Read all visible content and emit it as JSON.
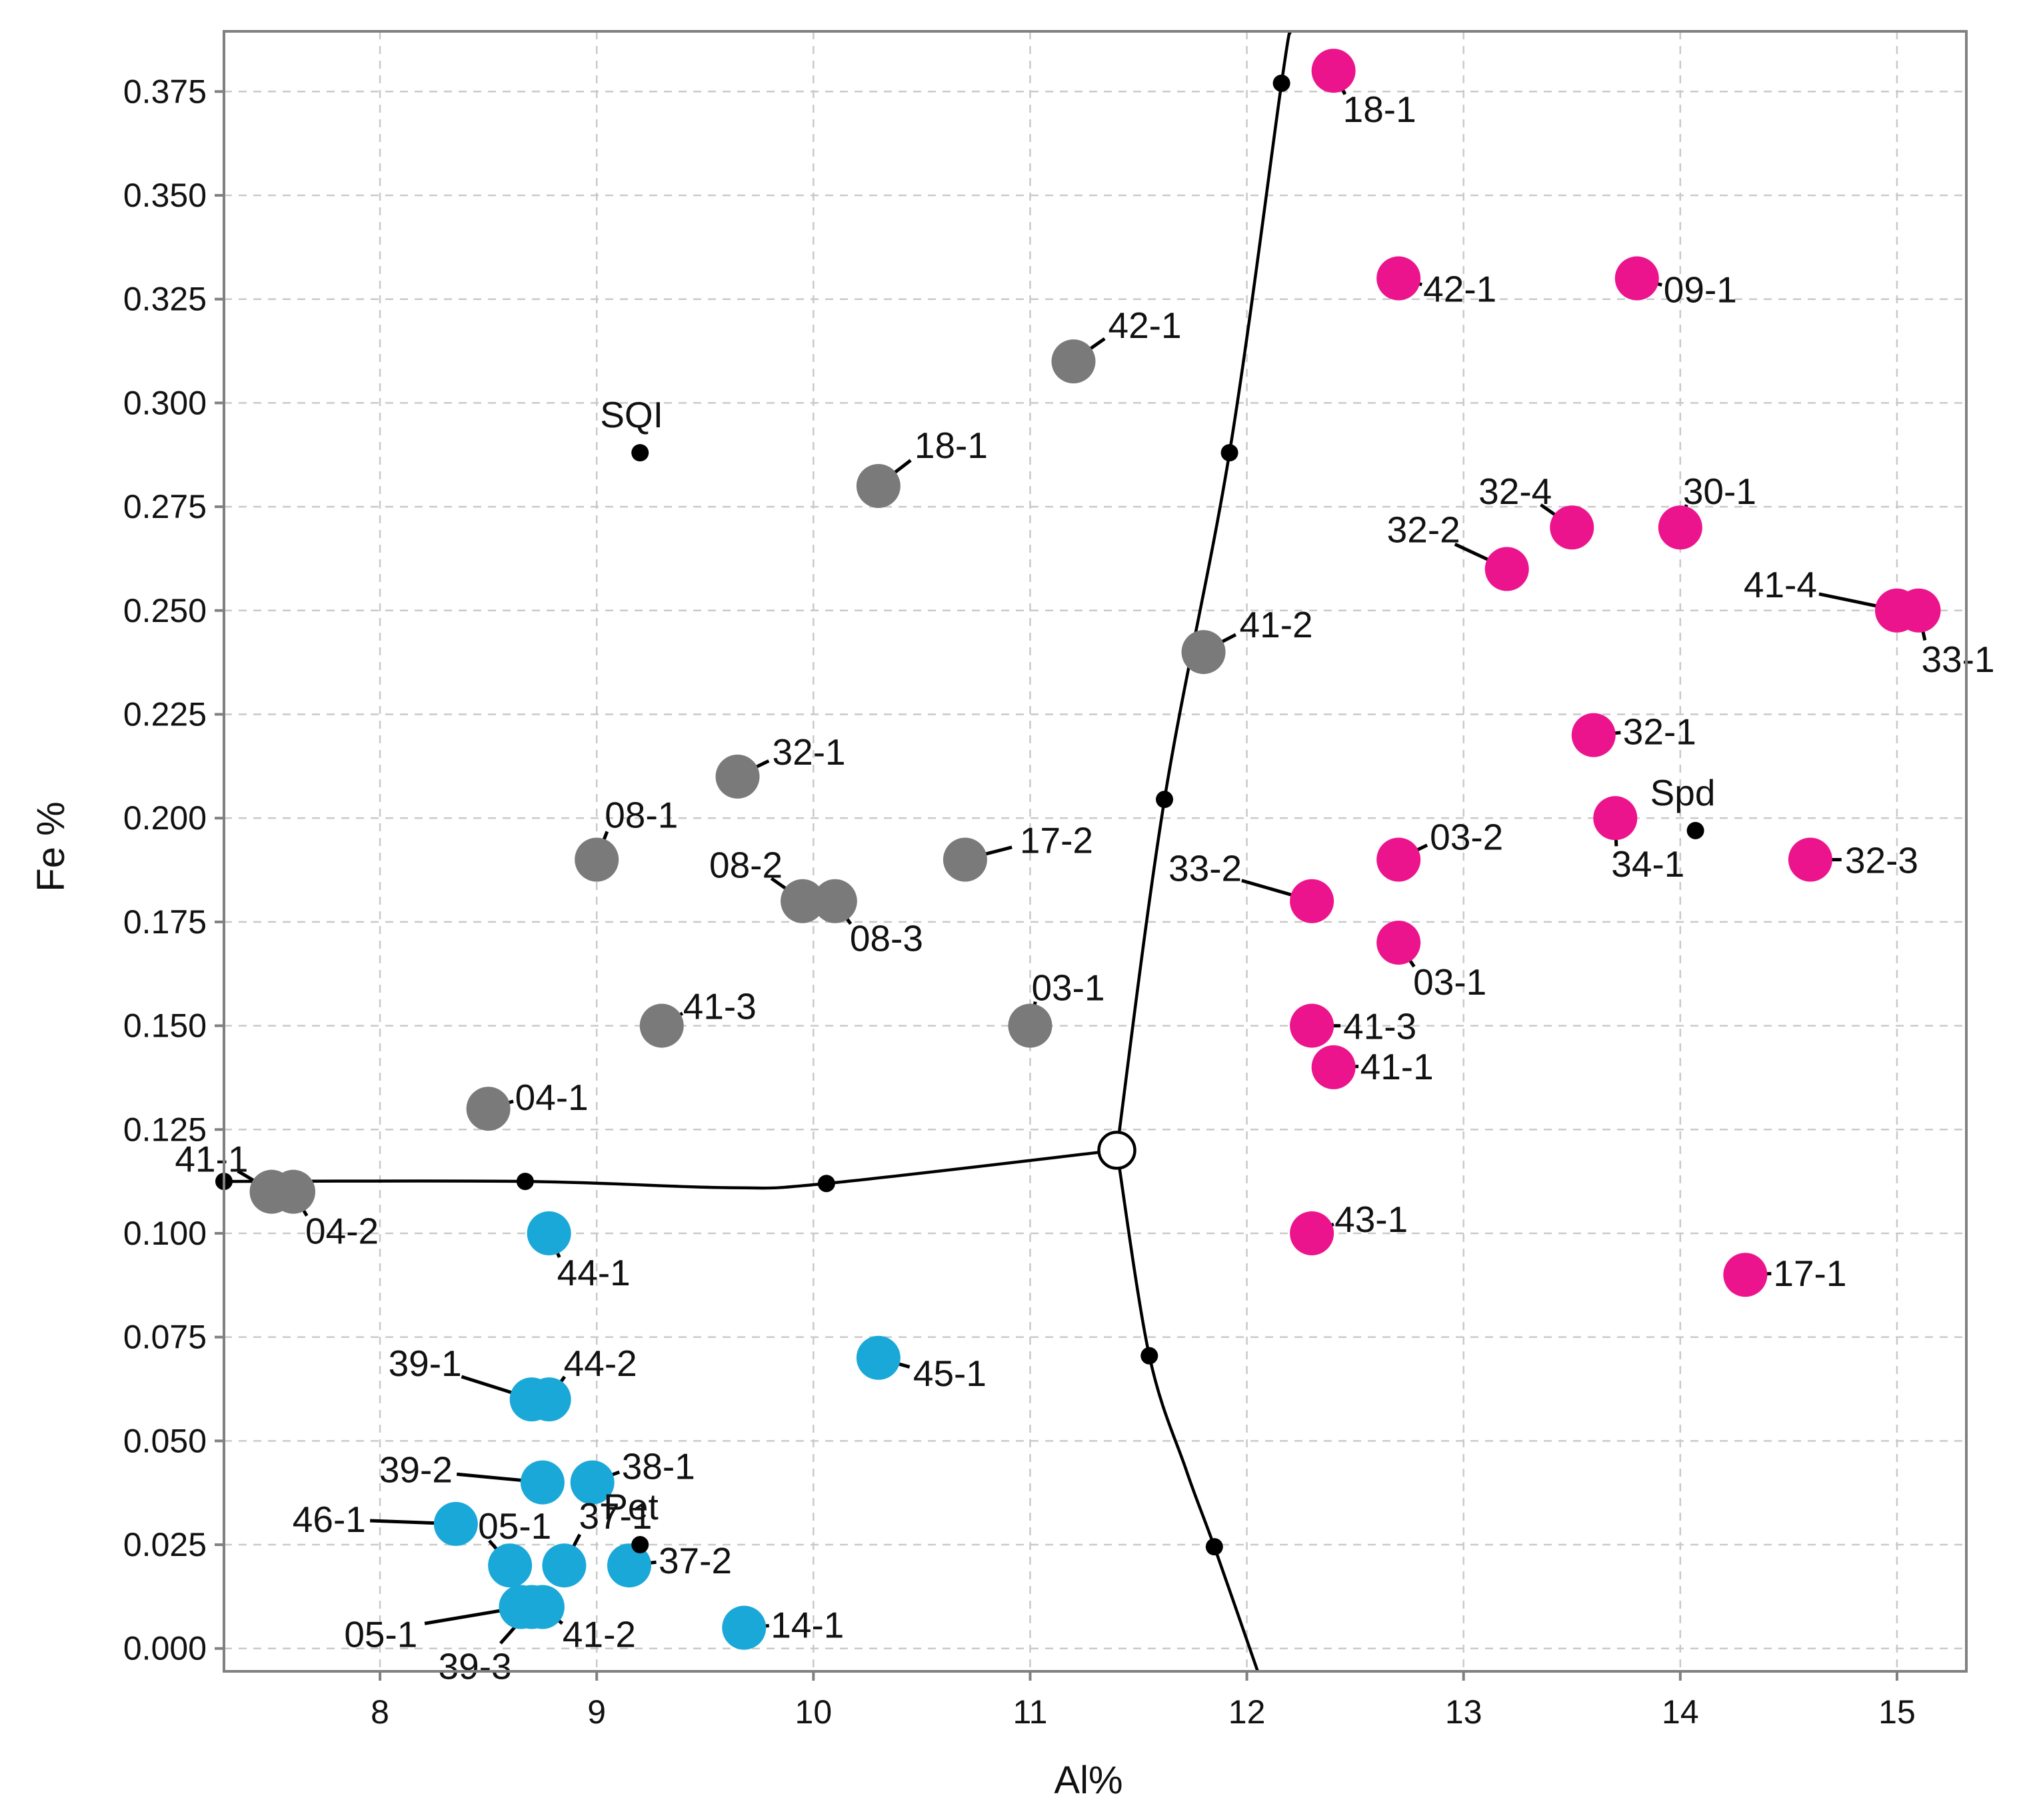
{
  "chart_data": {
    "type": "scatter",
    "title": "",
    "xlabel": "Al%",
    "ylabel": "Fe %",
    "xlim": [
      7.28,
      15.32
    ],
    "ylim": [
      -0.0055,
      0.3895
    ],
    "xticks": [
      8,
      9,
      10,
      11,
      12,
      13,
      14,
      15
    ],
    "yticks": [
      0.0,
      0.025,
      0.05,
      0.075,
      0.1,
      0.125,
      0.15,
      0.175,
      0.2,
      0.225,
      0.25,
      0.275,
      0.3,
      0.325,
      0.35,
      0.375
    ],
    "grid": true,
    "colors": {
      "grey": "#7a7a7a",
      "magenta": "#ec148c",
      "cyan": "#1aa8d8"
    },
    "series": [
      {
        "name": "grey",
        "color": "#7a7a7a",
        "points": [
          {
            "label": "42-1",
            "x": 11.2,
            "y": 0.31
          },
          {
            "label": "18-1",
            "x": 10.3,
            "y": 0.28
          },
          {
            "label": "41-2",
            "x": 11.8,
            "y": 0.24
          },
          {
            "label": "32-1",
            "x": 9.65,
            "y": 0.21
          },
          {
            "label": "08-1",
            "x": 9.0,
            "y": 0.19
          },
          {
            "label": "17-2",
            "x": 10.7,
            "y": 0.19
          },
          {
            "label": "08-2",
            "x": 9.95,
            "y": 0.18
          },
          {
            "label": "08-3",
            "x": 10.1,
            "y": 0.18
          },
          {
            "label": "41-3",
            "x": 9.3,
            "y": 0.15
          },
          {
            "label": "03-1",
            "x": 11.0,
            "y": 0.15
          },
          {
            "label": "04-1",
            "x": 8.5,
            "y": 0.13
          },
          {
            "label": "41-1",
            "x": 7.5,
            "y": 0.11
          },
          {
            "label": "04-2",
            "x": 7.6,
            "y": 0.11
          }
        ]
      },
      {
        "name": "magenta",
        "color": "#ec148c",
        "points": [
          {
            "label": "18-1",
            "x": 12.4,
            "y": 0.38
          },
          {
            "label": "42-1",
            "x": 12.7,
            "y": 0.33
          },
          {
            "label": "09-1",
            "x": 13.8,
            "y": 0.33
          },
          {
            "label": "32-4",
            "x": 13.5,
            "y": 0.27
          },
          {
            "label": "30-1",
            "x": 14.0,
            "y": 0.27
          },
          {
            "label": "32-2",
            "x": 13.2,
            "y": 0.26
          },
          {
            "label": "41-4",
            "x": 15.0,
            "y": 0.25
          },
          {
            "label": "33-1",
            "x": 15.1,
            "y": 0.25
          },
          {
            "label": "32-1",
            "x": 13.6,
            "y": 0.22
          },
          {
            "label": "34-1",
            "x": 13.7,
            "y": 0.2
          },
          {
            "label": "03-2",
            "x": 12.7,
            "y": 0.19
          },
          {
            "label": "32-3",
            "x": 14.6,
            "y": 0.19
          },
          {
            "label": "33-2",
            "x": 12.3,
            "y": 0.18
          },
          {
            "label": "03-1",
            "x": 12.7,
            "y": 0.17
          },
          {
            "label": "41-3",
            "x": 12.3,
            "y": 0.15
          },
          {
            "label": "41-1",
            "x": 12.4,
            "y": 0.14
          },
          {
            "label": "43-1",
            "x": 12.3,
            "y": 0.1
          },
          {
            "label": "17-1",
            "x": 14.3,
            "y": 0.09
          }
        ]
      },
      {
        "name": "cyan",
        "color": "#1aa8d8",
        "points": [
          {
            "label": "44-1",
            "x": 8.78,
            "y": 0.1
          },
          {
            "label": "45-1",
            "x": 10.3,
            "y": 0.07
          },
          {
            "label": "39-1",
            "x": 8.7,
            "y": 0.06
          },
          {
            "label": "44-2",
            "x": 8.78,
            "y": 0.06
          },
          {
            "label": "39-2",
            "x": 8.75,
            "y": 0.04
          },
          {
            "label": "38-1",
            "x": 8.98,
            "y": 0.04
          },
          {
            "label": "46-1",
            "x": 8.35,
            "y": 0.03
          },
          {
            "label": "05-1",
            "x": 8.6,
            "y": 0.02
          },
          {
            "label": "37-1",
            "x": 8.85,
            "y": 0.02
          },
          {
            "label": "37-2",
            "x": 9.15,
            "y": 0.02
          },
          {
            "label": "05-1",
            "x": 8.65,
            "y": 0.01
          },
          {
            "label": "41-2",
            "x": 8.75,
            "y": 0.01
          },
          {
            "label": "39-3",
            "x": 8.7,
            "y": 0.01
          },
          {
            "label": "14-1",
            "x": 9.68,
            "y": 0.005
          }
        ]
      }
    ],
    "reference_points": [
      {
        "label": "SQI",
        "x": 9.2,
        "y": 0.288
      },
      {
        "label": "Spd",
        "x": 14.07,
        "y": 0.197
      },
      {
        "label": "Pet",
        "x": 9.2,
        "y": 0.025
      }
    ],
    "boundaries": {
      "triple_point": {
        "x": 11.4,
        "y": 0.12
      },
      "left_branch": [
        {
          "x": 7.28,
          "y": 0.1125
        },
        {
          "x": 8.67,
          "y": 0.1125
        },
        {
          "x": 9.6,
          "y": 0.111
        },
        {
          "x": 10.06,
          "y": 0.112
        },
        {
          "x": 11.4,
          "y": 0.12
        }
      ],
      "upper_branch": [
        {
          "x": 11.4,
          "y": 0.12
        },
        {
          "x": 11.62,
          "y": 0.2045
        },
        {
          "x": 11.92,
          "y": 0.288
        },
        {
          "x": 12.16,
          "y": 0.377
        },
        {
          "x": 12.2,
          "y": 0.3895
        }
      ],
      "lower_branch": [
        {
          "x": 11.4,
          "y": 0.12
        },
        {
          "x": 11.55,
          "y": 0.0705
        },
        {
          "x": 11.72,
          "y": 0.043
        },
        {
          "x": 11.85,
          "y": 0.0245
        },
        {
          "x": 12.05,
          "y": -0.0055
        }
      ],
      "marked_nodes": [
        {
          "x": 7.28,
          "y": 0.1125
        },
        {
          "x": 8.67,
          "y": 0.1125
        },
        {
          "x": 10.06,
          "y": 0.112
        },
        {
          "x": 11.62,
          "y": 0.2045
        },
        {
          "x": 11.92,
          "y": 0.288
        },
        {
          "x": 12.16,
          "y": 0.377
        },
        {
          "x": 11.55,
          "y": 0.0705
        },
        {
          "x": 11.85,
          "y": 0.0245
        }
      ]
    }
  }
}
